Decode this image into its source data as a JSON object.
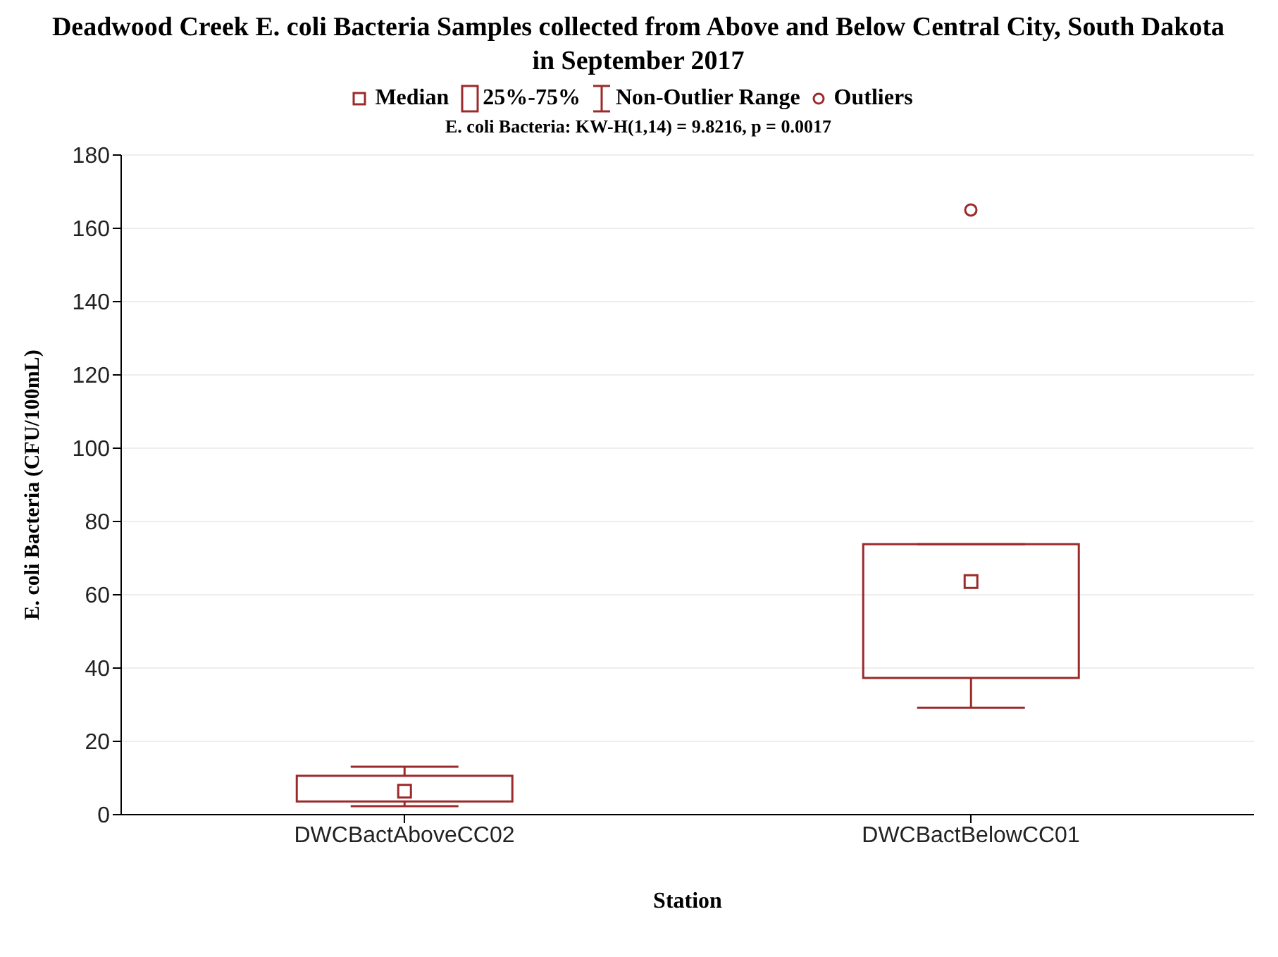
{
  "chart_data": {
    "type": "box",
    "title": "Deadwood Creek E. coli Bacteria Samples collected from Above and Below Central City, South Dakota in September 2017",
    "subtitle": "E. coli Bacteria:  KW-H(1,14) = 9.8216, p = 0.0017",
    "xlabel": "Station",
    "ylabel": "E. coli Bacteria (CFU/100mL)",
    "categories": [
      "DWCBactAboveCC02",
      "DWCBactBelowCC01"
    ],
    "boxes": [
      {
        "low": 2.3,
        "q1": 3.6,
        "median": 6.4,
        "q3": 10.6,
        "high": 13.1
      },
      {
        "low": 29.2,
        "q1": 37.3,
        "median": 63.6,
        "q3": 73.8,
        "high": 73.8,
        "outliers": [
          165
        ]
      }
    ],
    "color": "#9b2a2a",
    "ylim": [
      0,
      180
    ],
    "yticks": [
      0,
      20,
      40,
      60,
      80,
      100,
      120,
      140,
      160,
      180
    ],
    "grid": "y",
    "annotations": [
      "Median",
      "25%-75%",
      "Non-Outlier Range",
      "Outliers"
    ]
  }
}
